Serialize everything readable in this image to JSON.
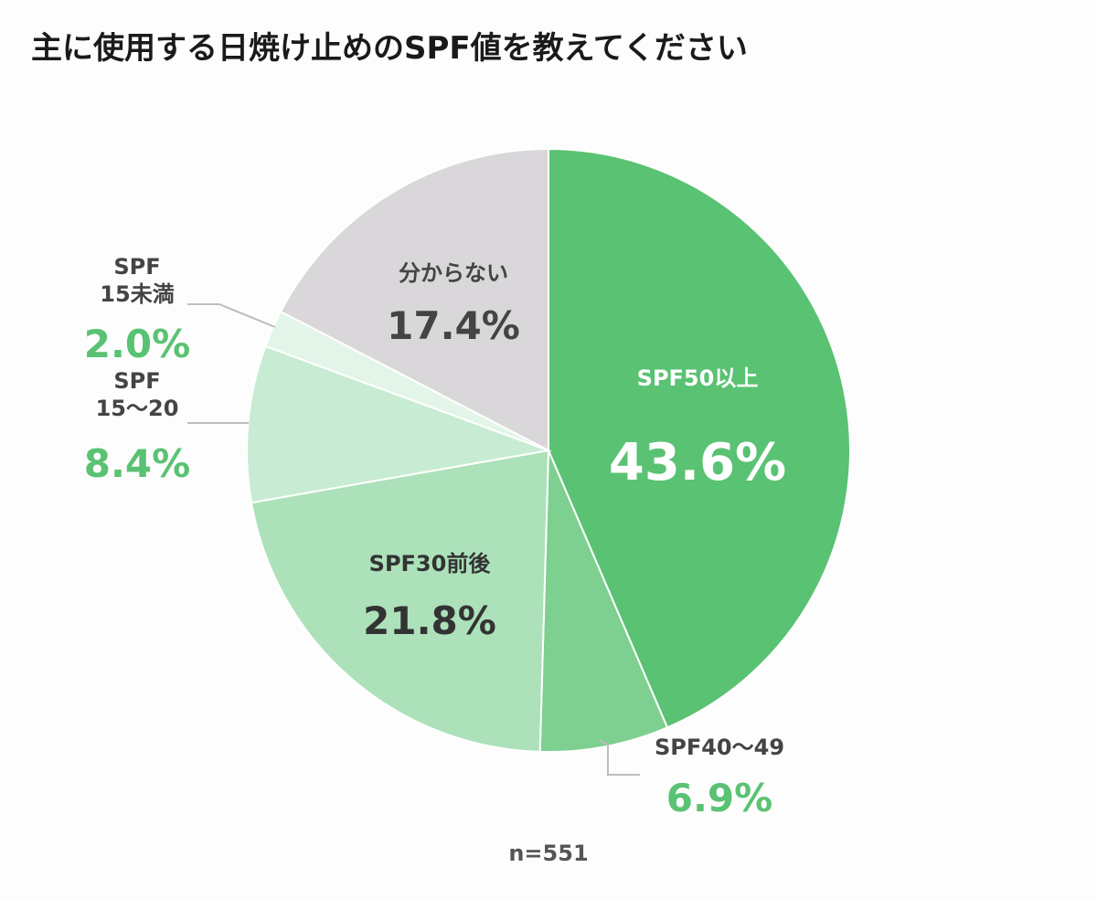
{
  "chart_data": {
    "type": "pie",
    "title": "主に使用する日焼け止めのSPF値を教えてください",
    "note": "n=551",
    "slices": [
      {
        "label": "SPF50以上",
        "label_lines": [
          "SPF50以上"
        ],
        "value": 43.6,
        "value_text": "43.6%",
        "color": "#5ac273",
        "text_color": "#ffffff",
        "pct_color": "#ffffff"
      },
      {
        "label": "SPF40〜49",
        "label_lines": [
          "SPF40〜49"
        ],
        "value": 6.9,
        "value_text": "6.9%",
        "color": "#7dd08f",
        "text_color": "#444444",
        "pct_color": "#5ac273"
      },
      {
        "label": "SPF30前後",
        "label_lines": [
          "SPF30前後"
        ],
        "value": 21.8,
        "value_text": "21.8%",
        "color": "#ace1ba",
        "text_color": "#333333",
        "pct_color": "#333333"
      },
      {
        "label": "SPF 15〜20",
        "label_lines": [
          "SPF",
          "15〜20"
        ],
        "value": 8.4,
        "value_text": "8.4%",
        "color": "#c8ecd3",
        "text_color": "#444444",
        "pct_color": "#5ac273"
      },
      {
        "label": "SPF 15未満",
        "label_lines": [
          "SPF",
          "15未満"
        ],
        "value": 2.0,
        "value_text": "2.0%",
        "color": "#e3f5e8",
        "text_color": "#444444",
        "pct_color": "#5ac273"
      },
      {
        "label": "分からない",
        "label_lines": [
          "分からない"
        ],
        "value": 17.4,
        "value_text": "17.4%",
        "color": "#d9d7da",
        "text_color": "#444444",
        "pct_color": "#444444"
      }
    ]
  }
}
